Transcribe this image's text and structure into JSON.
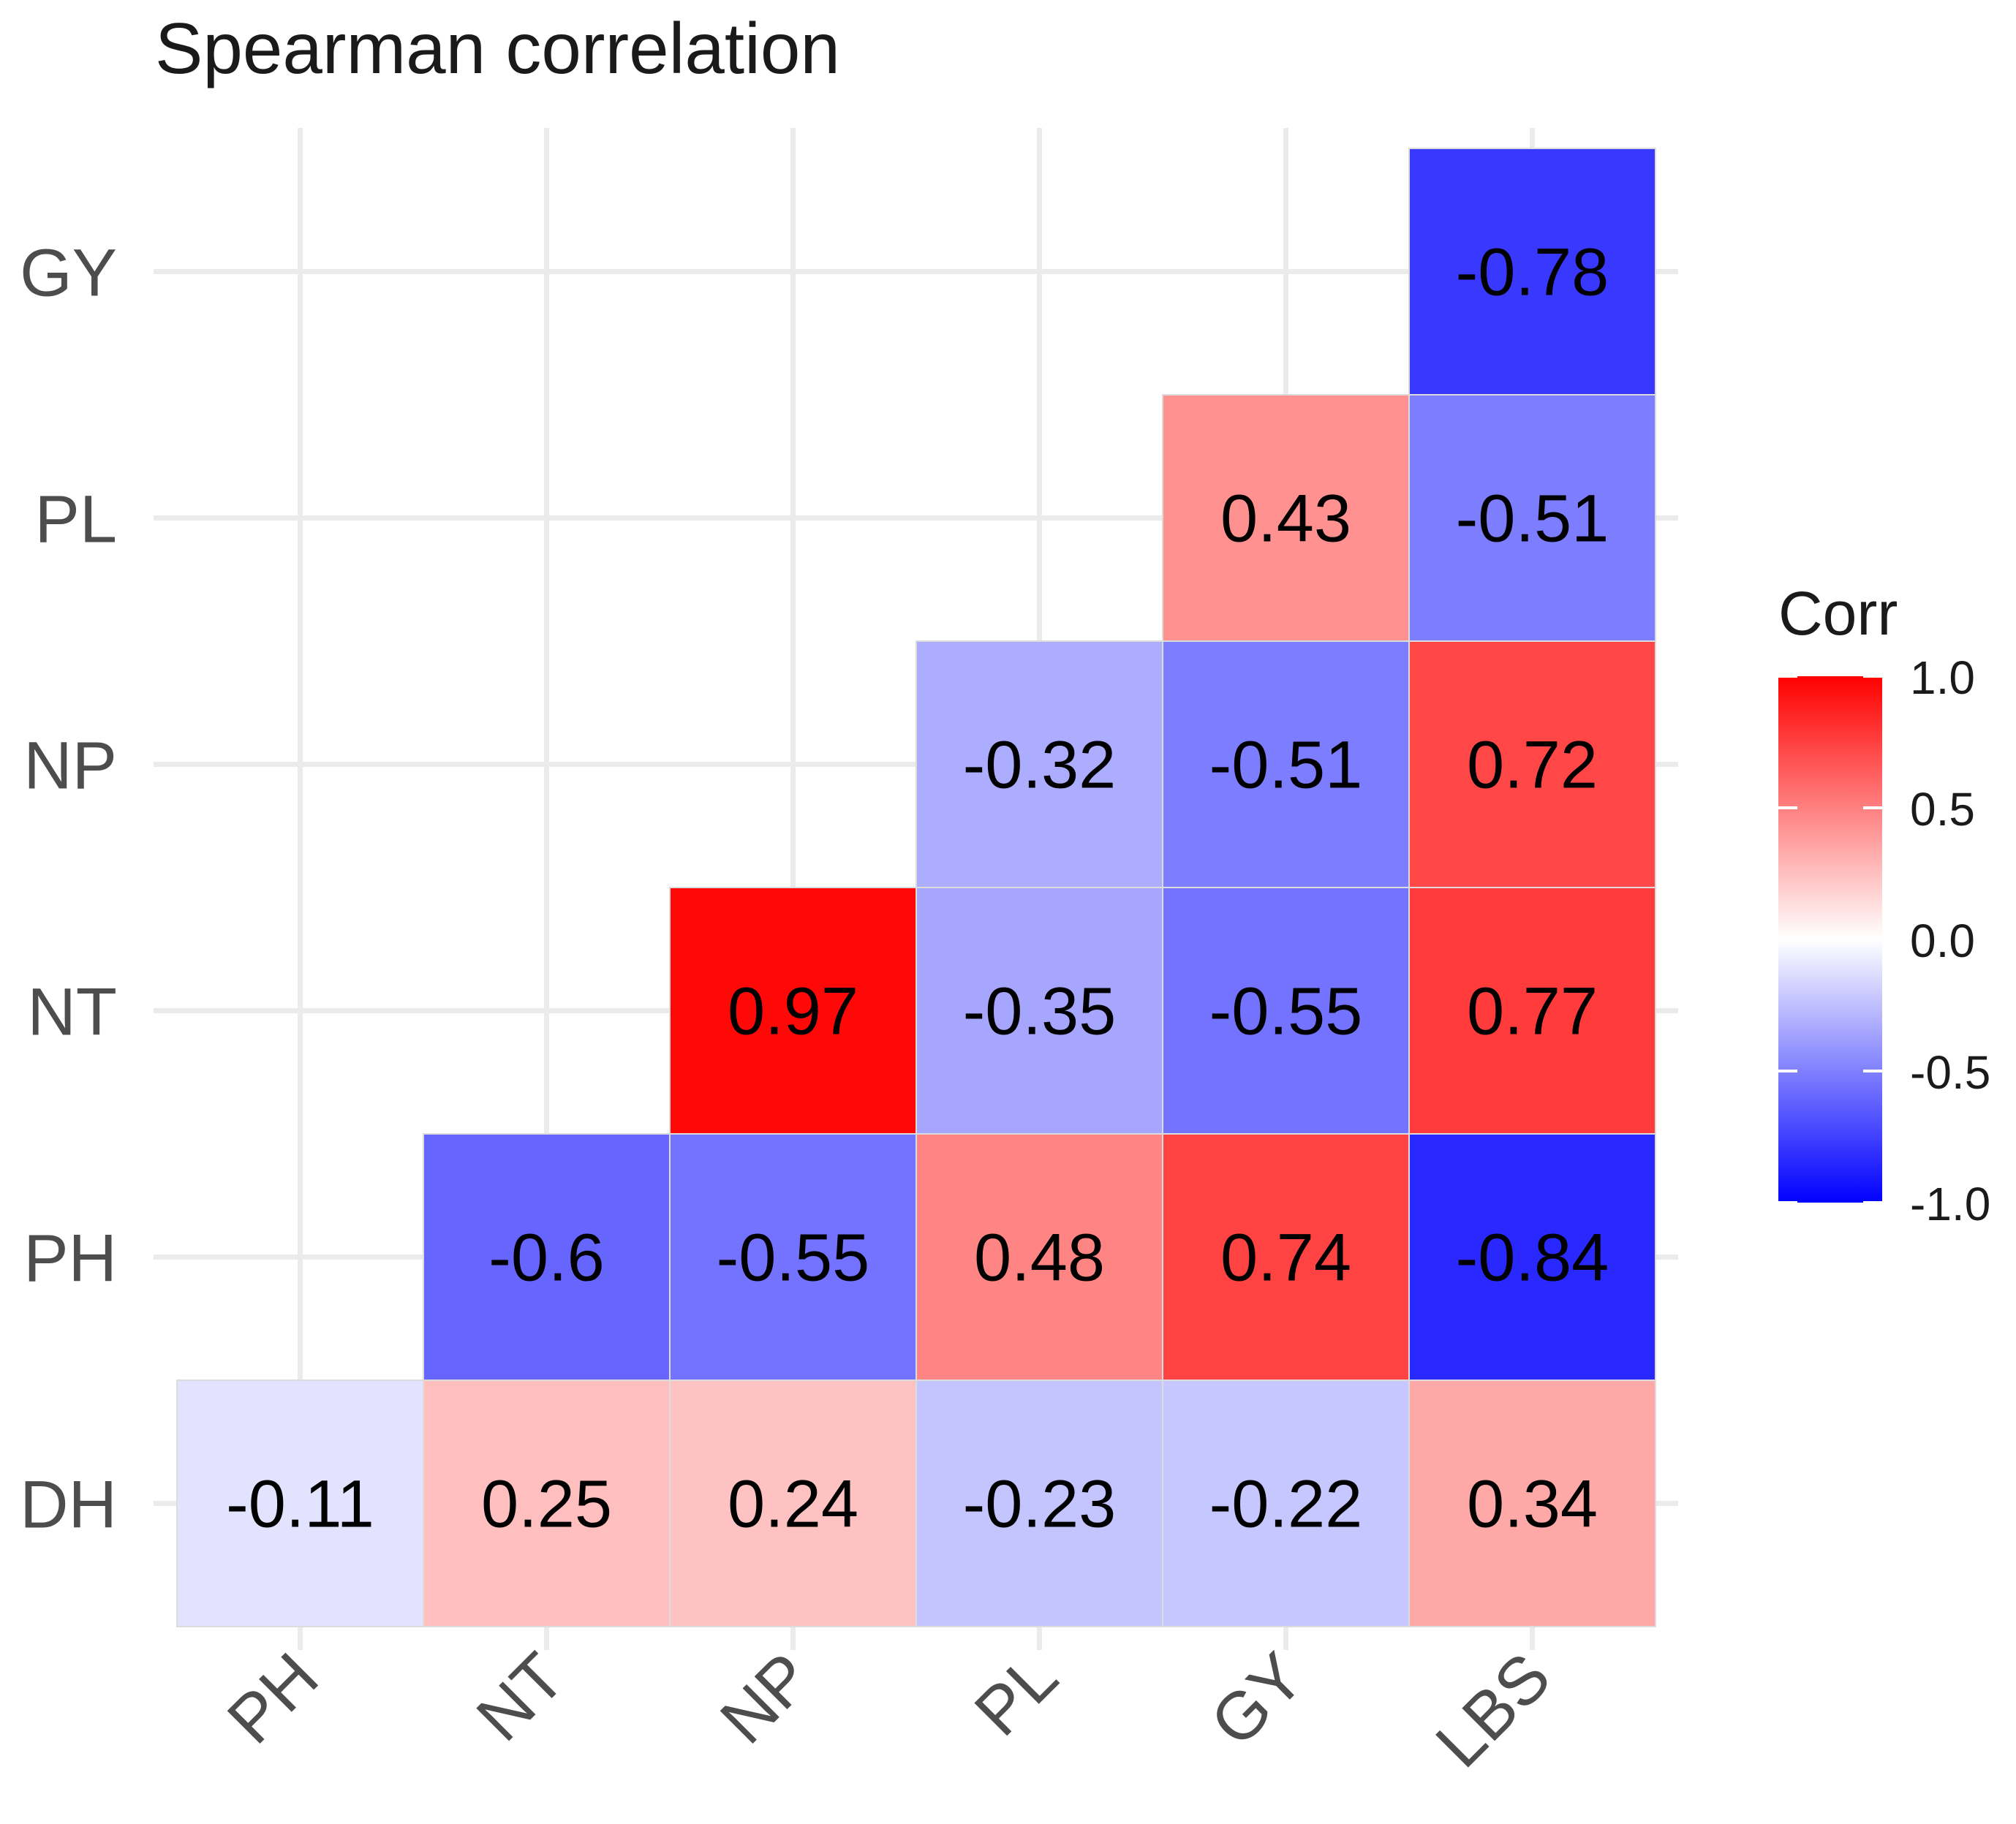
{
  "chart_data": {
    "type": "heatmap",
    "title": "Spearman correlation",
    "x_categories": [
      "PH",
      "NT",
      "NP",
      "PL",
      "GY",
      "LBS"
    ],
    "y_categories": [
      "DH",
      "PH",
      "NT",
      "NP",
      "PL",
      "GY"
    ],
    "cells": [
      {
        "x": "PH",
        "y": "DH",
        "value": -0.11,
        "label": "-0.11"
      },
      {
        "x": "NT",
        "y": "DH",
        "value": 0.25,
        "label": "0.25"
      },
      {
        "x": "NP",
        "y": "DH",
        "value": 0.24,
        "label": "0.24"
      },
      {
        "x": "PL",
        "y": "DH",
        "value": -0.23,
        "label": "-0.23"
      },
      {
        "x": "GY",
        "y": "DH",
        "value": -0.22,
        "label": "-0.22"
      },
      {
        "x": "LBS",
        "y": "DH",
        "value": 0.34,
        "label": "0.34"
      },
      {
        "x": "NT",
        "y": "PH",
        "value": -0.6,
        "label": "-0.6"
      },
      {
        "x": "NP",
        "y": "PH",
        "value": -0.55,
        "label": "-0.55"
      },
      {
        "x": "PL",
        "y": "PH",
        "value": 0.48,
        "label": "0.48"
      },
      {
        "x": "GY",
        "y": "PH",
        "value": 0.74,
        "label": "0.74"
      },
      {
        "x": "LBS",
        "y": "PH",
        "value": -0.84,
        "label": "-0.84"
      },
      {
        "x": "NP",
        "y": "NT",
        "value": 0.97,
        "label": "0.97"
      },
      {
        "x": "PL",
        "y": "NT",
        "value": -0.35,
        "label": "-0.35"
      },
      {
        "x": "GY",
        "y": "NT",
        "value": -0.55,
        "label": "-0.55"
      },
      {
        "x": "LBS",
        "y": "NT",
        "value": 0.77,
        "label": "0.77"
      },
      {
        "x": "PL",
        "y": "NP",
        "value": -0.32,
        "label": "-0.32"
      },
      {
        "x": "GY",
        "y": "NP",
        "value": -0.51,
        "label": "-0.51"
      },
      {
        "x": "LBS",
        "y": "NP",
        "value": 0.72,
        "label": "0.72"
      },
      {
        "x": "GY",
        "y": "PL",
        "value": 0.43,
        "label": "0.43"
      },
      {
        "x": "LBS",
        "y": "PL",
        "value": -0.51,
        "label": "-0.51"
      },
      {
        "x": "LBS",
        "y": "GY",
        "value": -0.78,
        "label": "-0.78"
      }
    ],
    "color_scale": {
      "low": "#0000FF",
      "mid": "#FFFFFF",
      "high": "#FF0000",
      "limits": [
        -1,
        1
      ]
    },
    "legend": {
      "title": "Corr",
      "position": "right",
      "ticks": [
        {
          "value": 1.0,
          "label": "1.0"
        },
        {
          "value": 0.5,
          "label": "0.5"
        },
        {
          "value": 0.0,
          "label": "0.0"
        },
        {
          "value": -0.5,
          "label": "-0.5"
        },
        {
          "value": -1.0,
          "label": "-1.0"
        }
      ]
    },
    "grid": true,
    "xlabel": "",
    "ylabel": ""
  }
}
